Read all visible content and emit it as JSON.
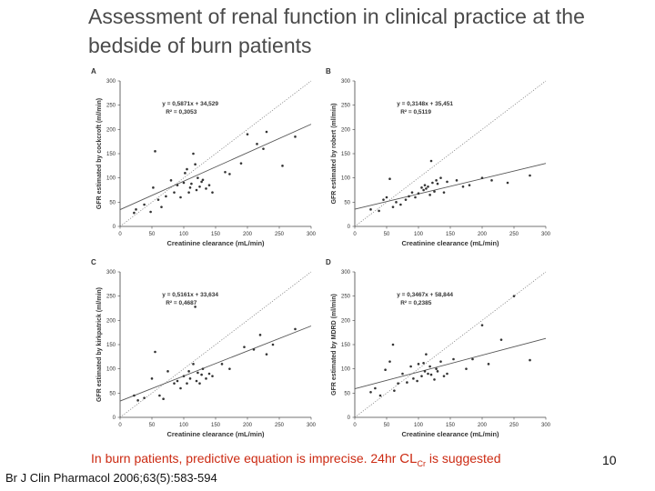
{
  "slide": {
    "title_line1": "Assessment of renal function in clinical practice at the",
    "title_line2": "bedside of burn patients",
    "caption_prefix": "In burn patients, predictive equation is imprecise. 24hr ",
    "caption_cl": "CL",
    "caption_sub": "Cr",
    "caption_suffix": " is suggested",
    "citation": "Br J Clin Pharmacol 2006;63(5):583-594",
    "slide_number": "10"
  },
  "colors": {
    "title": "#4a4a4a",
    "caption": "#cc2a12",
    "points": "#333333",
    "regression": "#555555",
    "identity": "#777777"
  },
  "chart_data": [
    {
      "panel": "A",
      "type": "scatter",
      "equation": "y = 0,5871x + 34,529",
      "r2": "R² = 0,3053",
      "slope": 0.5871,
      "intercept": 34.529,
      "xlabel": "Creatinine clearance (mL/min)",
      "ylabel": "GFR estimated by cockcroft (ml/min)",
      "xlim": [
        0,
        300
      ],
      "ylim": [
        0,
        300
      ],
      "xticks": [
        0,
        50,
        100,
        150,
        200,
        250,
        300
      ],
      "yticks": [
        0,
        50,
        100,
        150,
        200,
        250,
        300
      ],
      "identity_line": true,
      "points": [
        [
          22,
          28
        ],
        [
          25,
          35
        ],
        [
          38,
          45
        ],
        [
          48,
          30
        ],
        [
          52,
          80
        ],
        [
          55,
          155
        ],
        [
          60,
          55
        ],
        [
          65,
          40
        ],
        [
          72,
          62
        ],
        [
          80,
          95
        ],
        [
          85,
          70
        ],
        [
          90,
          85
        ],
        [
          95,
          60
        ],
        [
          100,
          90
        ],
        [
          102,
          110
        ],
        [
          105,
          118
        ],
        [
          108,
          70
        ],
        [
          110,
          80
        ],
        [
          112,
          88
        ],
        [
          115,
          150
        ],
        [
          118,
          128
        ],
        [
          120,
          75
        ],
        [
          122,
          100
        ],
        [
          125,
          82
        ],
        [
          128,
          92
        ],
        [
          130,
          96
        ],
        [
          135,
          78
        ],
        [
          140,
          85
        ],
        [
          145,
          70
        ],
        [
          165,
          112
        ],
        [
          172,
          108
        ],
        [
          190,
          130
        ],
        [
          200,
          190
        ],
        [
          215,
          170
        ],
        [
          225,
          160
        ],
        [
          230,
          195
        ],
        [
          255,
          125
        ],
        [
          275,
          185
        ]
      ]
    },
    {
      "panel": "B",
      "type": "scatter",
      "equation": "y = 0,3148x + 35,451",
      "r2": "R² = 0,5119",
      "slope": 0.3148,
      "intercept": 35.451,
      "xlabel": "Creatinine clearance (mL/min)",
      "ylabel": "GFR estimated by robert (ml/min)",
      "xlim": [
        0,
        300
      ],
      "ylim": [
        0,
        300
      ],
      "xticks": [
        0,
        50,
        100,
        150,
        200,
        250,
        300
      ],
      "yticks": [
        0,
        50,
        100,
        150,
        200,
        250,
        300
      ],
      "identity_line": true,
      "points": [
        [
          25,
          35
        ],
        [
          38,
          32
        ],
        [
          45,
          55
        ],
        [
          50,
          60
        ],
        [
          55,
          98
        ],
        [
          60,
          40
        ],
        [
          65,
          50
        ],
        [
          72,
          45
        ],
        [
          80,
          55
        ],
        [
          85,
          62
        ],
        [
          90,
          70
        ],
        [
          95,
          60
        ],
        [
          100,
          68
        ],
        [
          105,
          80
        ],
        [
          108,
          75
        ],
        [
          110,
          85
        ],
        [
          112,
          78
        ],
        [
          115,
          82
        ],
        [
          118,
          65
        ],
        [
          120,
          135
        ],
        [
          122,
          90
        ],
        [
          125,
          72
        ],
        [
          128,
          95
        ],
        [
          130,
          88
        ],
        [
          135,
          100
        ],
        [
          140,
          70
        ],
        [
          145,
          92
        ],
        [
          160,
          95
        ],
        [
          170,
          82
        ],
        [
          180,
          85
        ],
        [
          200,
          100
        ],
        [
          215,
          95
        ],
        [
          240,
          90
        ],
        [
          275,
          105
        ]
      ]
    },
    {
      "panel": "C",
      "type": "scatter",
      "equation": "y = 0,5161x + 33,634",
      "r2": "R² = 0,4687",
      "slope": 0.5161,
      "intercept": 33.634,
      "xlabel": "Creatinine clearance (mL/min)",
      "ylabel": "GFR estimated by kirkpatrick (ml/min)",
      "xlim": [
        0,
        300
      ],
      "ylim": [
        0,
        300
      ],
      "xticks": [
        0,
        50,
        100,
        150,
        200,
        250,
        300
      ],
      "yticks": [
        0,
        50,
        100,
        150,
        200,
        250,
        300
      ],
      "identity_line": true,
      "points": [
        [
          22,
          45
        ],
        [
          28,
          35
        ],
        [
          38,
          40
        ],
        [
          50,
          80
        ],
        [
          55,
          135
        ],
        [
          62,
          45
        ],
        [
          68,
          38
        ],
        [
          75,
          95
        ],
        [
          85,
          70
        ],
        [
          90,
          75
        ],
        [
          95,
          60
        ],
        [
          100,
          85
        ],
        [
          105,
          70
        ],
        [
          108,
          95
        ],
        [
          110,
          80
        ],
        [
          115,
          110
        ],
        [
          118,
          228
        ],
        [
          120,
          75
        ],
        [
          122,
          92
        ],
        [
          125,
          70
        ],
        [
          128,
          88
        ],
        [
          130,
          100
        ],
        [
          135,
          80
        ],
        [
          140,
          90
        ],
        [
          145,
          85
        ],
        [
          160,
          110
        ],
        [
          172,
          100
        ],
        [
          195,
          145
        ],
        [
          210,
          140
        ],
        [
          220,
          170
        ],
        [
          230,
          130
        ],
        [
          240,
          150
        ],
        [
          275,
          182
        ]
      ]
    },
    {
      "panel": "D",
      "type": "scatter",
      "equation": "y = 0,3467x + 58,844",
      "r2": "R² = 0,2385",
      "slope": 0.3467,
      "intercept": 58.844,
      "xlabel": "Creatinine clearance (mL/min)",
      "ylabel": "GFR estimated by MDRD (ml/min)",
      "xlim": [
        0,
        300
      ],
      "ylim": [
        0,
        300
      ],
      "xticks": [
        0,
        50,
        100,
        150,
        200,
        250,
        300
      ],
      "yticks": [
        0,
        50,
        100,
        150,
        200,
        250,
        300
      ],
      "identity_line": true,
      "points": [
        [
          25,
          52
        ],
        [
          32,
          60
        ],
        [
          40,
          45
        ],
        [
          48,
          98
        ],
        [
          55,
          115
        ],
        [
          60,
          150
        ],
        [
          62,
          55
        ],
        [
          68,
          70
        ],
        [
          75,
          90
        ],
        [
          82,
          72
        ],
        [
          88,
          105
        ],
        [
          92,
          80
        ],
        [
          98,
          75
        ],
        [
          100,
          110
        ],
        [
          105,
          85
        ],
        [
          108,
          112
        ],
        [
          110,
          95
        ],
        [
          112,
          130
        ],
        [
          115,
          90
        ],
        [
          118,
          105
        ],
        [
          120,
          88
        ],
        [
          125,
          78
        ],
        [
          128,
          100
        ],
        [
          130,
          95
        ],
        [
          135,
          115
        ],
        [
          140,
          85
        ],
        [
          145,
          90
        ],
        [
          155,
          120
        ],
        [
          175,
          100
        ],
        [
          185,
          120
        ],
        [
          200,
          190
        ],
        [
          210,
          110
        ],
        [
          230,
          160
        ],
        [
          250,
          250
        ],
        [
          275,
          118
        ]
      ]
    }
  ]
}
